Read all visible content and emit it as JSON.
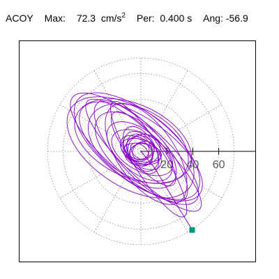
{
  "header": {
    "channel": "ACOY",
    "max_label": "Max:",
    "max_value": "72.3",
    "max_unit": "cm/s",
    "max_exp": "2",
    "per_label": "Per:",
    "per_value": "0.400 s",
    "ang_label": "Ang:",
    "ang_value": "-56.9"
  },
  "chart_data": {
    "type": "scatter",
    "title": "ACOY",
    "polar_grid": true,
    "axis_direction": "positive-x",
    "r_ticks": [
      "20",
      "40",
      "60"
    ],
    "r_tick_values": [
      20,
      40,
      60
    ],
    "rlim": [
      0,
      72.3
    ],
    "angle_of_max_deg": -56.9,
    "max_magnitude": 72.3,
    "orbit_color": "#8800cc",
    "marker_color": "#009977",
    "grid_color": "#888888",
    "end_point": {
      "x": 39.5,
      "y": -60.6
    },
    "ellipse_loops": [
      {
        "a": 62,
        "b": 21,
        "deg": -40,
        "cx": -5,
        "cy": 2
      },
      {
        "a": 58,
        "b": 26,
        "deg": -38,
        "cx": -3,
        "cy": 4
      },
      {
        "a": 50,
        "b": 18,
        "deg": -48,
        "cx": 0,
        "cy": 0
      },
      {
        "a": 55,
        "b": 30,
        "deg": -33,
        "cx": -8,
        "cy": 3
      },
      {
        "a": 45,
        "b": 22,
        "deg": -55,
        "cx": 4,
        "cy": -2
      },
      {
        "a": 60,
        "b": 16,
        "deg": -44,
        "cx": 2,
        "cy": -3
      },
      {
        "a": 42,
        "b": 26,
        "deg": -30,
        "cx": -2,
        "cy": 6
      },
      {
        "a": 52,
        "b": 12,
        "deg": -58,
        "cx": 6,
        "cy": -6
      },
      {
        "a": 38,
        "b": 20,
        "deg": -42,
        "cx": -4,
        "cy": 1
      },
      {
        "a": 48,
        "b": 28,
        "deg": -25,
        "cx": -6,
        "cy": 8
      },
      {
        "a": 56,
        "b": 24,
        "deg": -36,
        "cx": 0,
        "cy": 0
      },
      {
        "a": 36,
        "b": 12,
        "deg": -50,
        "cx": 2,
        "cy": 2
      },
      {
        "a": 30,
        "b": 16,
        "deg": -40,
        "cx": -1,
        "cy": 0
      },
      {
        "a": 26,
        "b": 14,
        "deg": -30,
        "cx": 1,
        "cy": -1
      },
      {
        "a": 20,
        "b": 11,
        "deg": -60,
        "cx": 0,
        "cy": 1
      }
    ],
    "center_loops": [
      {
        "a": 16,
        "b": 9,
        "deg": -20,
        "cx": 0,
        "cy": 0
      },
      {
        "a": 14,
        "b": 12,
        "deg": 15,
        "cx": 1,
        "cy": 1
      },
      {
        "a": 12,
        "b": 8,
        "deg": -45,
        "cx": -1,
        "cy": 0
      },
      {
        "a": 18,
        "b": 10,
        "deg": -35,
        "cx": 0,
        "cy": -1
      },
      {
        "a": 10,
        "b": 7,
        "deg": 30,
        "cx": 1,
        "cy": 0
      },
      {
        "a": 13,
        "b": 9,
        "deg": -65,
        "cx": -1,
        "cy": 1
      },
      {
        "a": 9,
        "b": 6,
        "deg": 10,
        "cx": 0,
        "cy": 0
      },
      {
        "a": 15,
        "b": 7,
        "deg": -10,
        "cx": 1,
        "cy": -1
      },
      {
        "a": 11,
        "b": 10,
        "deg": -80,
        "cx": 0,
        "cy": 1
      },
      {
        "a": 8,
        "b": 5,
        "deg": -40,
        "cx": -1,
        "cy": 0
      },
      {
        "a": 17,
        "b": 11,
        "deg": -55,
        "cx": 0,
        "cy": 0
      },
      {
        "a": 7,
        "b": 6,
        "deg": 50,
        "cx": 0,
        "cy": 0
      }
    ],
    "tail_path": [
      {
        "x": 0,
        "y": 0
      },
      {
        "x": 10,
        "y": -12
      },
      {
        "x": 18,
        "y": -25
      },
      {
        "x": 24,
        "y": -35
      },
      {
        "x": 30,
        "y": -45
      },
      {
        "x": 35,
        "y": -53
      },
      {
        "x": 39.5,
        "y": -60.6
      }
    ]
  }
}
